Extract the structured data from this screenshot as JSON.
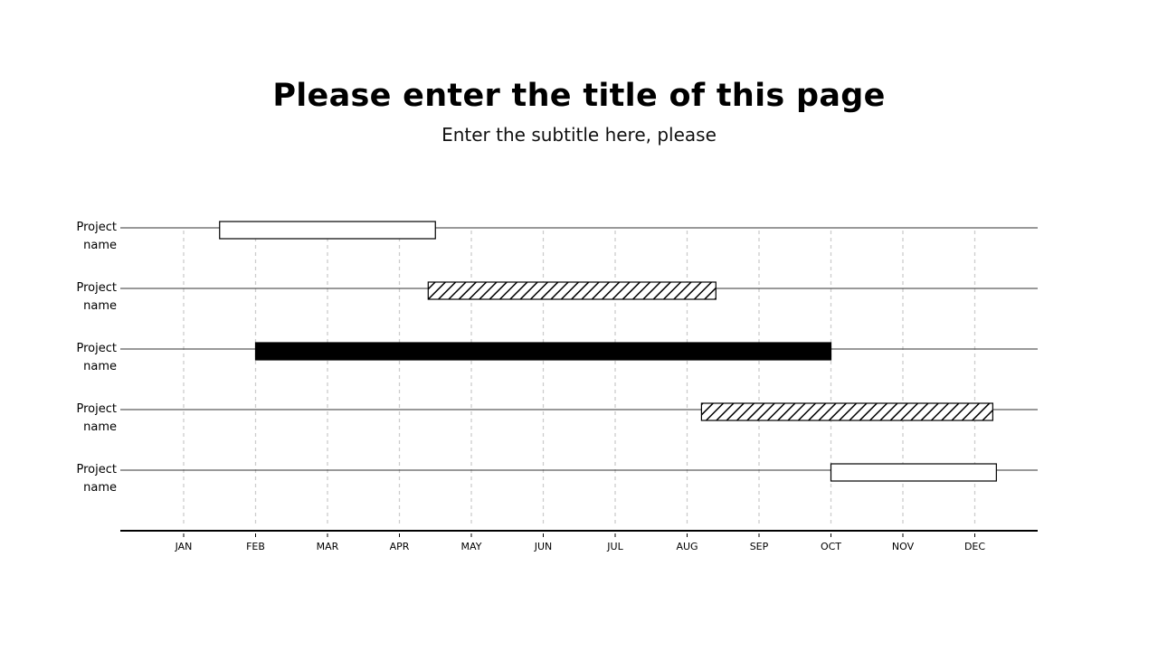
{
  "chart_data": {
    "type": "gantt",
    "title": "Please enter the title of this page",
    "subtitle": "Enter the subtitle here, please",
    "categories": [
      "JAN",
      "FEB",
      "MAR",
      "APR",
      "MAY",
      "JUN",
      "JUL",
      "AUG",
      "SEP",
      "OCT",
      "NOV",
      "DEC"
    ],
    "xlim": [
      0.1,
      13.3
    ],
    "grid": true,
    "tasks": [
      {
        "label_line1": "Project",
        "label_line2": "name",
        "start": 1.5,
        "end": 4.5,
        "style": "outline"
      },
      {
        "label_line1": "Project",
        "label_line2": "name",
        "start": 4.4,
        "end": 8.4,
        "style": "hatched"
      },
      {
        "label_line1": "Project",
        "label_line2": "name",
        "start": 2.0,
        "end": 10.0,
        "style": "solid"
      },
      {
        "label_line1": "Project",
        "label_line2": "name",
        "start": 8.2,
        "end": 12.25,
        "style": "hatched"
      },
      {
        "label_line1": "Project",
        "label_line2": "name",
        "start": 10.0,
        "end": 12.3,
        "style": "outline"
      }
    ],
    "colors": {
      "bar_fill_solid": "#000000",
      "bar_outline": "#000000",
      "row_line": "#333333",
      "grid": "#cccccc"
    }
  }
}
